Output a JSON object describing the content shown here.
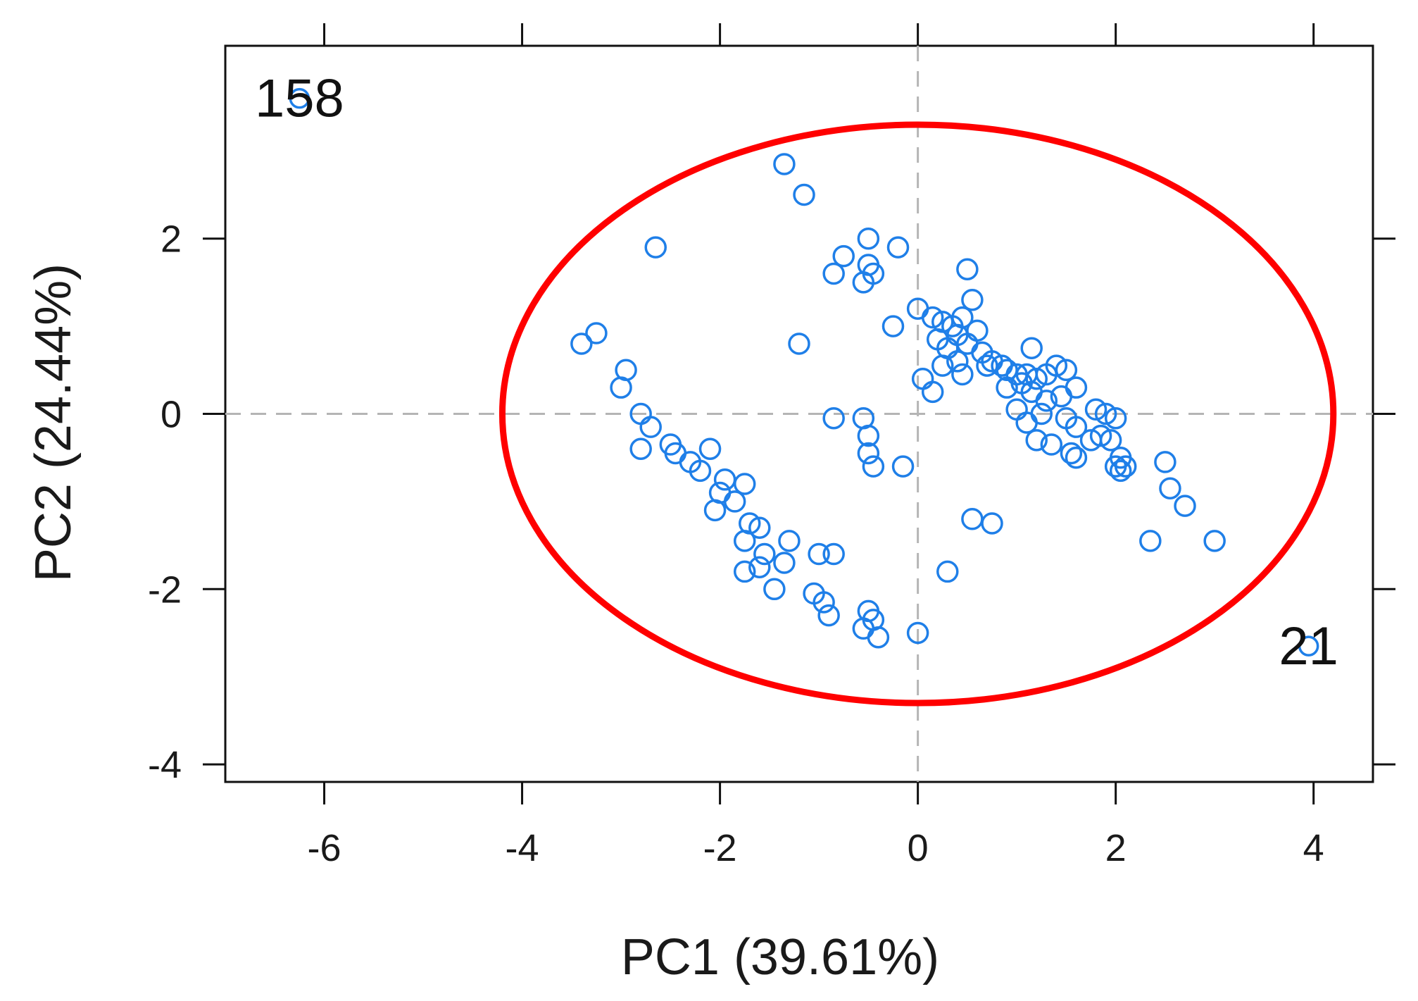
{
  "chart_data": {
    "type": "scatter",
    "xlabel": "PC1 (39.61%)",
    "ylabel": "PC2 (24.44%)",
    "xlim": [
      -7,
      4.6
    ],
    "ylim": [
      -4.2,
      4.2
    ],
    "xticks": [
      -6,
      -4,
      -2,
      0,
      2,
      4
    ],
    "xtick_labels": [
      "-6",
      "-4",
      "-2",
      "0",
      "2",
      "4"
    ],
    "yticks": [
      -4,
      -2,
      0,
      2
    ],
    "ytick_labels": [
      "-4",
      "-2",
      "0",
      "2"
    ],
    "reference_lines": {
      "x": 0,
      "y": 0,
      "style": "dashed"
    },
    "ellipse": {
      "center": [
        0,
        0
      ],
      "rx": 4.2,
      "ry": 3.3,
      "color": "#ff0000"
    },
    "point_color": "#1f7fe8",
    "ellipse_color": "#ff0000",
    "labeled_points": [
      {
        "label": "158",
        "x": -6.25,
        "y": 3.6
      },
      {
        "label": "21",
        "x": 3.95,
        "y": -2.65
      }
    ],
    "points": [
      [
        -1.35,
        2.85
      ],
      [
        -1.15,
        2.5
      ],
      [
        -2.65,
        1.9
      ],
      [
        -0.5,
        2.0
      ],
      [
        -0.2,
        1.9
      ],
      [
        -0.75,
        1.8
      ],
      [
        -0.5,
        1.7
      ],
      [
        -0.45,
        1.6
      ],
      [
        -0.85,
        1.6
      ],
      [
        -0.55,
        1.5
      ],
      [
        -3.4,
        0.8
      ],
      [
        -3.25,
        0.92
      ],
      [
        -1.2,
        0.8
      ],
      [
        -2.95,
        0.5
      ],
      [
        -3.0,
        0.3
      ],
      [
        -2.8,
        0.0
      ],
      [
        -2.7,
        -0.15
      ],
      [
        -2.8,
        -0.4
      ],
      [
        -2.5,
        -0.35
      ],
      [
        -2.45,
        -0.45
      ],
      [
        -2.3,
        -0.55
      ],
      [
        -2.2,
        -0.65
      ],
      [
        -2.1,
        -0.4
      ],
      [
        -1.95,
        -0.75
      ],
      [
        -2.0,
        -0.9
      ],
      [
        -1.75,
        -0.8
      ],
      [
        -1.85,
        -1.0
      ],
      [
        -2.05,
        -1.1
      ],
      [
        -1.7,
        -1.25
      ],
      [
        -1.6,
        -1.3
      ],
      [
        -1.75,
        -1.45
      ],
      [
        -1.55,
        -1.6
      ],
      [
        -1.6,
        -1.75
      ],
      [
        -1.75,
        -1.8
      ],
      [
        -1.3,
        -1.45
      ],
      [
        -1.35,
        -1.7
      ],
      [
        -1.45,
        -2.0
      ],
      [
        -1.05,
        -2.05
      ],
      [
        -0.95,
        -2.15
      ],
      [
        -0.9,
        -2.3
      ],
      [
        -1.0,
        -1.6
      ],
      [
        -0.85,
        -1.6
      ],
      [
        -0.5,
        -2.25
      ],
      [
        -0.45,
        -2.35
      ],
      [
        -0.55,
        -2.45
      ],
      [
        -0.4,
        -2.55
      ],
      [
        0.0,
        -2.5
      ],
      [
        -0.85,
        -0.05
      ],
      [
        -0.55,
        -0.05
      ],
      [
        -0.5,
        -0.25
      ],
      [
        -0.5,
        -0.45
      ],
      [
        -0.45,
        -0.6
      ],
      [
        -0.15,
        -0.6
      ],
      [
        0.3,
        -1.8
      ],
      [
        0.55,
        -1.2
      ],
      [
        0.75,
        -1.25
      ],
      [
        -0.25,
        1.0
      ],
      [
        0.0,
        1.2
      ],
      [
        0.15,
        1.1
      ],
      [
        0.25,
        1.05
      ],
      [
        0.35,
        1.0
      ],
      [
        0.45,
        1.1
      ],
      [
        0.55,
        1.3
      ],
      [
        0.5,
        1.65
      ],
      [
        0.4,
        0.9
      ],
      [
        0.6,
        0.95
      ],
      [
        0.2,
        0.85
      ],
      [
        0.3,
        0.75
      ],
      [
        0.5,
        0.8
      ],
      [
        0.65,
        0.7
      ],
      [
        0.75,
        0.6
      ],
      [
        0.85,
        0.55
      ],
      [
        0.9,
        0.5
      ],
      [
        1.0,
        0.45
      ],
      [
        1.1,
        0.45
      ],
      [
        1.15,
        0.75
      ],
      [
        1.05,
        0.35
      ],
      [
        1.2,
        0.4
      ],
      [
        1.3,
        0.45
      ],
      [
        1.4,
        0.55
      ],
      [
        1.5,
        0.5
      ],
      [
        1.6,
        0.3
      ],
      [
        1.45,
        0.2
      ],
      [
        1.3,
        0.15
      ],
      [
        1.15,
        0.25
      ],
      [
        0.9,
        0.3
      ],
      [
        0.7,
        0.55
      ],
      [
        0.4,
        0.6
      ],
      [
        0.25,
        0.55
      ],
      [
        0.45,
        0.45
      ],
      [
        0.05,
        0.4
      ],
      [
        0.15,
        0.25
      ],
      [
        1.0,
        0.05
      ],
      [
        1.25,
        0.0
      ],
      [
        1.5,
        -0.05
      ],
      [
        1.6,
        -0.15
      ],
      [
        1.8,
        0.05
      ],
      [
        1.1,
        -0.1
      ],
      [
        1.2,
        -0.3
      ],
      [
        1.35,
        -0.35
      ],
      [
        1.55,
        -0.45
      ],
      [
        1.6,
        -0.5
      ],
      [
        1.75,
        -0.3
      ],
      [
        1.85,
        -0.25
      ],
      [
        1.95,
        -0.3
      ],
      [
        2.0,
        -0.05
      ],
      [
        1.9,
        0.0
      ],
      [
        2.05,
        -0.5
      ],
      [
        2.1,
        -0.6
      ],
      [
        2.05,
        -0.65
      ],
      [
        2.0,
        -0.6
      ],
      [
        2.5,
        -0.55
      ],
      [
        2.55,
        -0.85
      ],
      [
        2.7,
        -1.05
      ],
      [
        2.35,
        -1.45
      ],
      [
        3.0,
        -1.45
      ]
    ]
  }
}
